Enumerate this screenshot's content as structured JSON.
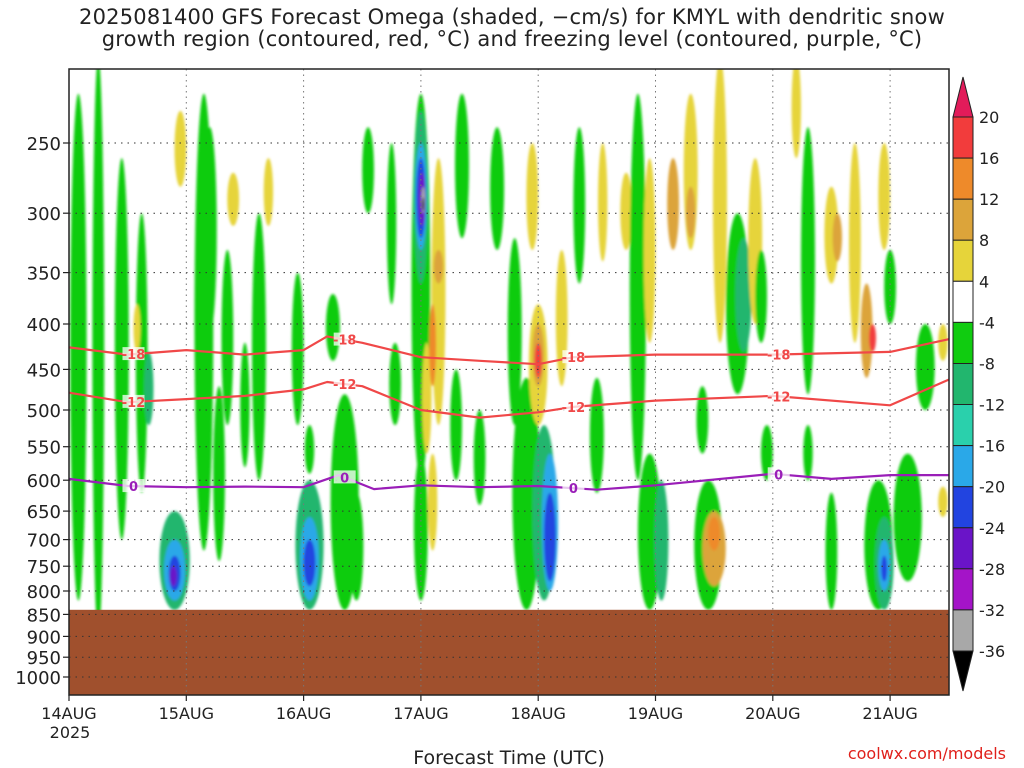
{
  "title_lines": [
    "2025081400 GFS Forecast Omega (shaded, −cm/s) for KMYL with dendritic snow",
    "growth region (contoured, red, °C) and freezing level (contoured, purple, °C)"
  ],
  "credit": "coolwx.com/models",
  "chart_data": {
    "type": "heatmap",
    "title": "2025081400 GFS Forecast Omega (shaded, −cm/s) for KMYL with dendritic snow growth region (contoured, red, °C) and freezing level (contoured, purple, °C)",
    "xlabel": "Forecast Time (UTC)",
    "ylabel": "",
    "x_ticks": [
      "14AUG",
      "15AUG",
      "16AUG",
      "17AUG",
      "18AUG",
      "19AUG",
      "20AUG",
      "21AUG"
    ],
    "x_year_label": "2025",
    "xlim_days": [
      0,
      7.5
    ],
    "y_ticks": [
      250,
      300,
      350,
      400,
      450,
      500,
      550,
      600,
      650,
      700,
      750,
      800,
      850,
      900,
      950,
      1000
    ],
    "ylim": [
      1000,
      200
    ],
    "y_scale": "log-pressure",
    "terrain_top_hpa": 840,
    "colorbar": {
      "ticks": [
        20,
        16,
        12,
        8,
        4,
        -4,
        -8,
        -12,
        -16,
        -20,
        -24,
        -28,
        -32,
        -36
      ],
      "colors": [
        "#e21b5a",
        "#f23c3c",
        "#ee8a2a",
        "#dca43a",
        "#e6d43a",
        "#ffffff",
        "#10cc10",
        "#22b66e",
        "#2ad0ac",
        "#2aa8e8",
        "#2244e0",
        "#6a14c8",
        "#a414c8",
        "#a8a8a8",
        "#000000"
      ]
    },
    "series": [
      {
        "name": "-18",
        "color": "#f04848",
        "x": [
          0,
          0.5,
          1.0,
          1.5,
          2.0,
          2.2,
          2.5,
          3.0,
          3.5,
          4.0,
          4.3,
          5.0,
          6.0,
          7.0,
          7.5
        ],
        "y": [
          425,
          433,
          428,
          433,
          428,
          413,
          420,
          436,
          440,
          444,
          436,
          433,
          433,
          430,
          416
        ]
      },
      {
        "name": "-12",
        "color": "#f04848",
        "x": [
          0,
          0.5,
          1.0,
          1.5,
          2.0,
          2.2,
          2.5,
          3.0,
          3.5,
          4.0,
          4.3,
          5.0,
          6.0,
          7.0,
          7.5
        ],
        "y": [
          478,
          490,
          486,
          482,
          474,
          465,
          470,
          500,
          510,
          503,
          496,
          488,
          482,
          494,
          462
        ]
      },
      {
        "name": "0",
        "color": "#9a1eb8",
        "x": [
          0,
          0.5,
          1.0,
          1.5,
          2.0,
          2.3,
          2.6,
          3.0,
          3.5,
          4.0,
          4.5,
          5.0,
          6.0,
          6.5,
          7.0,
          7.5
        ],
        "y": [
          598,
          609,
          611,
          610,
          611,
          592,
          614,
          608,
          611,
          609,
          615,
          608,
          590,
          598,
          592,
          592
        ]
      }
    ]
  }
}
